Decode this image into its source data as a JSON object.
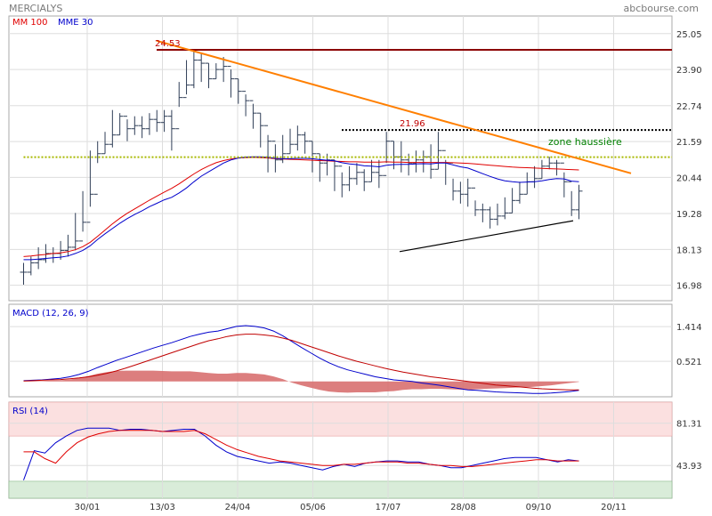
{
  "header": {
    "title": "MERCIALYS",
    "source": "abcbourse.com"
  },
  "colors": {
    "panel_border": "#a9a9a9",
    "grid": "#dddddd",
    "bar": "#2f3e57",
    "mm100": "#e00000",
    "mme30": "#0000cc",
    "resistance": "#8b0000",
    "trend_down": "#ff7f00",
    "trend_up": "#000000",
    "dotted_yellow": "#a8b800",
    "dotted_black": "#000000",
    "zone_text": "#008000",
    "macd_line": "#0000cc",
    "signal_line": "#c00000",
    "histogram": "#d87070",
    "rsi_line": "#0000cc",
    "rsi_signal": "#e00000",
    "rsi_high_zone": "#fbe0e0",
    "rsi_low_zone": "#d9ecd9"
  },
  "chart_data": [
    {
      "type": "line",
      "panel": "price",
      "title": "",
      "legend": [
        {
          "name": "MM 100",
          "color": "#e00000"
        },
        {
          "name": "MME 30",
          "color": "#0000cc"
        }
      ],
      "x_ticks": [
        "30/01",
        "13/03",
        "24/04",
        "05/06",
        "17/07",
        "28/08",
        "09/10",
        "20/11"
      ],
      "y_ticks": [
        25.05,
        23.9,
        22.74,
        21.59,
        20.44,
        19.28,
        18.13,
        16.98
      ],
      "ylim": [
        16.6,
        25.5
      ],
      "x_start_index": 1,
      "ohlc_close": [
        17.4,
        17.7,
        17.8,
        18.0,
        18.0,
        18.1,
        18.2,
        18.4,
        19.0,
        19.9,
        21.2,
        21.5,
        21.8,
        22.4,
        22.0,
        22.1,
        22.0,
        22.3,
        22.2,
        22.4,
        22.0,
        23.0,
        23.4,
        24.2,
        24.1,
        23.6,
        23.9,
        24.0,
        23.6,
        23.2,
        22.9,
        22.5,
        22.1,
        21.6,
        21.0,
        21.2,
        21.5,
        21.8,
        21.6,
        21.2,
        20.9,
        21.0,
        20.8,
        20.2,
        20.4,
        20.6,
        20.3,
        20.6,
        20.5,
        21.6,
        21.1,
        21.0,
        20.9,
        21.0,
        21.1,
        20.7,
        21.3,
        20.9,
        20.0,
        19.9,
        20.1,
        19.4,
        19.4,
        19.1,
        19.2,
        19.3,
        19.7,
        19.9,
        20.3,
        20.4,
        20.8,
        20.9,
        20.9,
        20.3,
        19.4,
        20.0
      ],
      "ohlc_high": [
        17.7,
        17.9,
        18.2,
        18.3,
        18.2,
        18.4,
        18.6,
        19.3,
        20.0,
        21.3,
        21.6,
        21.9,
        22.6,
        22.5,
        22.3,
        22.4,
        22.4,
        22.5,
        22.6,
        22.6,
        22.6,
        23.5,
        24.2,
        24.5,
        24.4,
        24.1,
        24.1,
        24.3,
        23.9,
        23.6,
        23.1,
        22.8,
        22.5,
        21.8,
        21.5,
        21.8,
        22.0,
        22.1,
        21.9,
        21.6,
        21.2,
        21.2,
        21.0,
        20.6,
        20.8,
        20.9,
        20.7,
        21.0,
        21.0,
        21.9,
        21.6,
        21.6,
        21.2,
        21.3,
        21.3,
        21.5,
        21.9,
        21.0,
        20.4,
        20.3,
        20.4,
        19.7,
        19.6,
        19.5,
        19.6,
        19.8,
        20.1,
        20.3,
        20.6,
        20.8,
        21.0,
        21.1,
        21.0,
        20.6,
        20.0,
        20.2
      ],
      "ohlc_low": [
        17.0,
        17.3,
        17.5,
        17.7,
        17.7,
        17.8,
        17.9,
        18.1,
        18.7,
        19.5,
        20.9,
        21.2,
        21.4,
        21.8,
        21.6,
        21.8,
        21.7,
        21.8,
        21.9,
        21.9,
        21.3,
        22.7,
        23.1,
        23.3,
        23.5,
        23.3,
        23.6,
        23.5,
        23.0,
        22.8,
        22.4,
        22.0,
        21.4,
        20.6,
        20.6,
        20.9,
        21.2,
        21.3,
        21.2,
        20.6,
        20.3,
        20.5,
        20.0,
        19.8,
        20.0,
        20.2,
        20.0,
        20.3,
        20.1,
        20.9,
        20.7,
        20.6,
        20.5,
        20.6,
        20.6,
        20.4,
        20.7,
        20.2,
        19.7,
        19.6,
        19.5,
        19.2,
        19.0,
        18.8,
        18.9,
        19.1,
        19.3,
        19.6,
        19.9,
        20.1,
        20.4,
        20.7,
        20.5,
        19.8,
        19.2,
        19.1
      ],
      "ohlc_ticks_count": 76,
      "series": [
        {
          "name": "MM 100",
          "values": [
            17.9,
            17.92,
            17.95,
            17.97,
            18.0,
            18.02,
            18.06,
            18.12,
            18.22,
            18.36,
            18.55,
            18.75,
            18.95,
            19.13,
            19.29,
            19.43,
            19.57,
            19.71,
            19.84,
            19.97,
            20.09,
            20.23,
            20.39,
            20.55,
            20.69,
            20.81,
            20.91,
            20.98,
            21.03,
            21.06,
            21.07,
            21.08,
            21.07,
            21.06,
            21.04,
            21.03,
            21.02,
            21.01,
            21.0,
            20.99,
            20.98,
            20.97,
            20.96,
            20.95,
            20.94,
            20.94,
            20.93,
            20.93,
            20.93,
            20.94,
            20.93,
            20.93,
            20.92,
            20.92,
            20.92,
            20.92,
            20.92,
            20.92,
            20.91,
            20.9,
            20.89,
            20.87,
            20.85,
            20.83,
            20.81,
            20.79,
            20.77,
            20.76,
            20.75,
            20.74,
            20.73,
            20.72,
            20.71,
            20.7,
            20.69,
            20.68
          ]
        },
        {
          "name": "MME 30",
          "values": [
            17.8,
            17.8,
            17.82,
            17.84,
            17.86,
            17.88,
            17.92,
            18.0,
            18.1,
            18.25,
            18.45,
            18.63,
            18.8,
            18.97,
            19.12,
            19.25,
            19.37,
            19.5,
            19.61,
            19.72,
            19.8,
            19.94,
            20.1,
            20.3,
            20.48,
            20.62,
            20.76,
            20.9,
            21.0,
            21.06,
            21.09,
            21.1,
            21.1,
            21.08,
            21.05,
            21.04,
            21.04,
            21.05,
            21.05,
            21.04,
            21.01,
            20.99,
            20.97,
            20.91,
            20.87,
            20.85,
            20.81,
            20.8,
            20.78,
            20.83,
            20.85,
            20.86,
            20.86,
            20.87,
            20.88,
            20.87,
            20.9,
            20.9,
            20.84,
            20.78,
            20.74,
            20.65,
            20.56,
            20.47,
            20.39,
            20.33,
            20.3,
            20.28,
            20.29,
            20.3,
            20.33,
            20.37,
            20.4,
            20.39,
            20.32,
            20.3
          ]
        }
      ],
      "annotations": [
        {
          "text": "24.53",
          "value": 24.53
        },
        {
          "text": "21.96",
          "value": 21.96
        },
        {
          "text": "zone haussière"
        }
      ],
      "level_lines": [
        {
          "value": 24.53,
          "style": "solid",
          "color": "#8b0000",
          "from_index": 24
        },
        {
          "value": 21.96,
          "style": "dotted",
          "color": "#000000",
          "from_index": 56
        },
        {
          "value": 21.09,
          "style": "dotted",
          "color": "#a8b800",
          "from_index": 1
        }
      ],
      "trend_lines": [
        {
          "color": "#ff7f00",
          "from": [
            24,
            24.82
          ],
          "to": [
            106,
            20.57
          ]
        },
        {
          "color": "#000000",
          "from": [
            66,
            18.06
          ],
          "to": [
            96,
            19.05
          ]
        }
      ]
    },
    {
      "type": "line",
      "panel": "macd",
      "title": "MACD (12, 26, 9)",
      "y_ticks": [
        1.414,
        0.521
      ],
      "ylim": [
        -0.35,
        1.9
      ],
      "series": [
        {
          "name": "MACD",
          "values": [
            0.02,
            0.03,
            0.04,
            0.06,
            0.08,
            0.12,
            0.18,
            0.26,
            0.36,
            0.45,
            0.54,
            0.62,
            0.7,
            0.78,
            0.86,
            0.93,
            1.0,
            1.08,
            1.16,
            1.22,
            1.27,
            1.3,
            1.36,
            1.42,
            1.44,
            1.42,
            1.38,
            1.3,
            1.18,
            1.03,
            0.88,
            0.74,
            0.6,
            0.48,
            0.38,
            0.3,
            0.24,
            0.18,
            0.12,
            0.08,
            0.04,
            0.02,
            0.0,
            -0.04,
            -0.07,
            -0.1,
            -0.14,
            -0.18,
            -0.22,
            -0.23,
            -0.25,
            -0.27,
            -0.28,
            -0.29,
            -0.3,
            -0.31,
            -0.31,
            -0.3,
            -0.28,
            -0.26,
            -0.23
          ]
        },
        {
          "name": "Signal",
          "values": [
            0.01,
            0.02,
            0.03,
            0.04,
            0.05,
            0.07,
            0.09,
            0.12,
            0.16,
            0.21,
            0.27,
            0.34,
            0.42,
            0.5,
            0.58,
            0.66,
            0.74,
            0.82,
            0.9,
            0.98,
            1.05,
            1.1,
            1.16,
            1.2,
            1.22,
            1.22,
            1.2,
            1.17,
            1.12,
            1.06,
            0.98,
            0.9,
            0.82,
            0.74,
            0.66,
            0.59,
            0.52,
            0.46,
            0.4,
            0.34,
            0.29,
            0.24,
            0.2,
            0.16,
            0.12,
            0.09,
            0.06,
            0.03,
            0.0,
            -0.03,
            -0.06,
            -0.09,
            -0.11,
            -0.13,
            -0.15,
            -0.17,
            -0.19,
            -0.2,
            -0.21,
            -0.22,
            -0.22
          ]
        }
      ],
      "histogram": [
        0.01,
        0.01,
        0.01,
        0.02,
        0.03,
        0.05,
        0.09,
        0.14,
        0.2,
        0.24,
        0.27,
        0.28,
        0.28,
        0.28,
        0.28,
        0.27,
        0.26,
        0.26,
        0.26,
        0.24,
        0.22,
        0.2,
        0.2,
        0.22,
        0.22,
        0.2,
        0.18,
        0.13,
        0.06,
        -0.03,
        -0.1,
        -0.16,
        -0.22,
        -0.26,
        -0.28,
        -0.29,
        -0.28,
        -0.28,
        -0.28,
        -0.26,
        -0.25,
        -0.22,
        -0.2,
        -0.2,
        -0.19,
        -0.19,
        -0.2,
        -0.21,
        -0.22,
        -0.2,
        -0.19,
        -0.18,
        -0.17,
        -0.16,
        -0.15,
        -0.14,
        -0.12,
        -0.1,
        -0.07,
        -0.04,
        -0.01
      ]
    },
    {
      "type": "line",
      "panel": "rsi",
      "title": "RSI (14)",
      "y_ticks": [
        81.31,
        43.93
      ],
      "ylim": [
        15,
        100
      ],
      "zones": [
        {
          "from": 70,
          "to": 100,
          "color": "#fbe0e0"
        },
        {
          "from": 15,
          "to": 30,
          "color": "#d9ecd9"
        }
      ],
      "series": [
        {
          "name": "RSI",
          "values": [
            31,
            57,
            55,
            64,
            70,
            75,
            77,
            77,
            77,
            75,
            76,
            76,
            75,
            74,
            75,
            76,
            76,
            70,
            62,
            56,
            52,
            50,
            48,
            46,
            47,
            46,
            44,
            42,
            40,
            43,
            45,
            43,
            46,
            47,
            48,
            48,
            47,
            47,
            45,
            44,
            42,
            42,
            44,
            46,
            48,
            50,
            51,
            51,
            51,
            49,
            47,
            49,
            48
          ]
        },
        {
          "name": "Signal",
          "values": [
            56,
            56,
            50,
            46,
            56,
            64,
            69,
            72,
            74,
            75,
            75,
            75,
            75,
            74,
            74,
            74,
            75,
            72,
            67,
            62,
            58,
            55,
            52,
            50,
            48,
            47,
            46,
            45,
            44,
            44,
            45,
            45,
            46,
            47,
            47,
            47,
            46,
            46,
            45,
            44,
            44,
            43,
            43,
            44,
            45,
            46,
            47,
            48,
            49,
            49,
            48,
            48,
            48
          ]
        }
      ]
    }
  ]
}
